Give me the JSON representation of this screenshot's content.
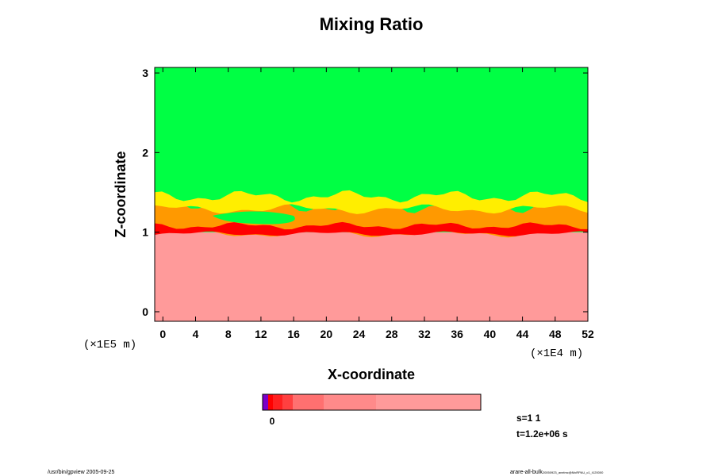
{
  "chart_data": {
    "type": "heatmap",
    "title": "Mixing Ratio",
    "xlabel": "X-coordinate",
    "ylabel": "Z-coordinate",
    "x_scale_label": "(×1E4 m)",
    "y_scale_label": "(×1E5 m)",
    "x_ticks": [
      0,
      4,
      8,
      12,
      16,
      20,
      24,
      28,
      32,
      36,
      40,
      44,
      48,
      52
    ],
    "y_ticks": [
      0,
      1,
      2,
      3
    ],
    "xlim": [
      -1,
      52
    ],
    "ylim": [
      -0.12,
      3.07
    ],
    "regions": {
      "lower_level_z": 1.0,
      "upper_mixing_top_z": 1.45,
      "colors": {
        "upper": "#00ff44",
        "lower": "#ff9a9a",
        "interface": "#ff0000",
        "transition_yellow": "#ffee00",
        "transition_orange": "#ff9900"
      }
    },
    "colorbar": {
      "tick_label": "0",
      "colors": [
        "#7b00c8",
        "#ff0000",
        "#ff2020",
        "#ff4040",
        "#ff7070",
        "#ff8a8a",
        "#ff9a9a"
      ]
    },
    "annotations": {
      "s_label": "s=1 1",
      "t_label": "t=1.2e+06 s"
    }
  },
  "footer": {
    "left": "/usr/bin/gpview 2005-09-25",
    "right_main": "arare-all-bulk",
    "right_small": "20050923_anelmc@MoRPAU_c1_t120000"
  }
}
